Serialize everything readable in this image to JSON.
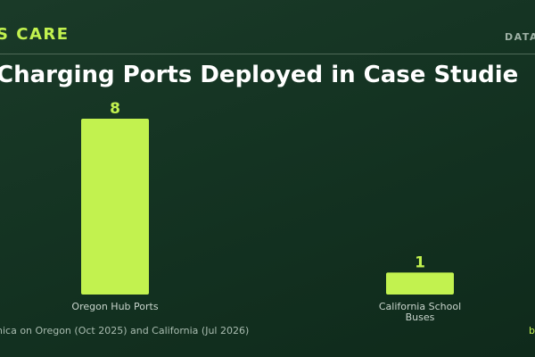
{
  "header": {
    "brand": "S CARE",
    "tag": "DATA"
  },
  "colors": {
    "accent": "#c2f24f",
    "bar": "#c2f24f",
    "value_label": "#c2f24f",
    "axis_label": "#c8d4cc"
  },
  "chart_data": {
    "type": "bar",
    "title": "Charging Ports Deployed in Case Studie",
    "categories": [
      "Oregon Hub Ports",
      "California School Buses"
    ],
    "values": [
      8,
      1
    ],
    "value_labels": [
      "8",
      "1"
    ],
    "category_label_lines": [
      [
        "Oregon Hub Ports"
      ],
      [
        "California School",
        "Buses"
      ]
    ],
    "xlabel": "",
    "ylabel": "",
    "ylim": [
      0,
      8
    ],
    "grid": false,
    "legend": "none"
  },
  "footer": {
    "source": "nica on Oregon (Oct 2025) and California (Jul 2026)",
    "credit": "b"
  }
}
